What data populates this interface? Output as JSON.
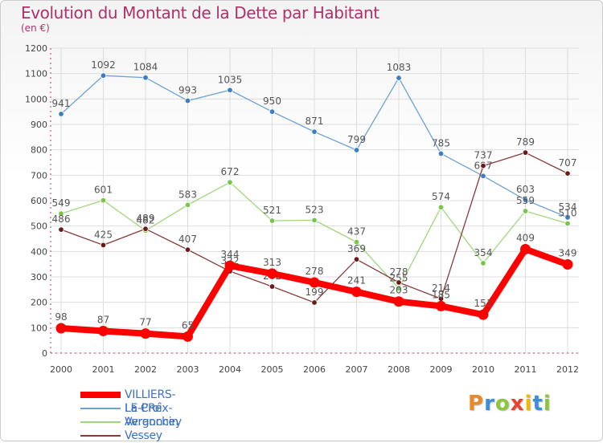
{
  "header": {
    "title": "Evolution du Montant de la Dette par Habitant",
    "subtitle": "(en €)"
  },
  "logo": {
    "text": "Proxiti",
    "letter_colors": [
      "#e8892b",
      "#3a8fd8",
      "#8cc63f",
      "#e8432e",
      "#f2b705",
      "#3a8fd8",
      "#8cc63f"
    ]
  },
  "chart_data": {
    "type": "line",
    "title": "Evolution du Montant de la Dette par Habitant",
    "subtitle": "(en €)",
    "xlabel": "",
    "ylabel": "",
    "ylim": [
      0,
      1200
    ],
    "yticks": [
      0,
      100,
      200,
      300,
      400,
      500,
      600,
      700,
      800,
      900,
      1000,
      1100,
      1200
    ],
    "grid": true,
    "legend_position": "bottom-left",
    "x": [
      "2000",
      "2001",
      "2002",
      "2003",
      "2004",
      "2005",
      "2006",
      "2007",
      "2008",
      "2009",
      "2010",
      "2011",
      "2012"
    ],
    "series": [
      {
        "name": "VILLIERS-LE-PRé",
        "color": "#ff0000",
        "emphasis": true,
        "values": [
          98,
          87,
          77,
          65,
          344,
          313,
          278,
          241,
          203,
          185,
          151,
          409,
          349
        ]
      },
      {
        "name": "La Croix-Avranchin",
        "color": "#6aa2d6",
        "marker_color": "#3a7fc4",
        "emphasis": false,
        "values": [
          941,
          1092,
          1084,
          993,
          1035,
          950,
          871,
          799,
          1083,
          785,
          697,
          603,
          534
        ]
      },
      {
        "name": "Vergoncey",
        "color": "#9fd87a",
        "marker_color": "#79c44c",
        "emphasis": false,
        "values": [
          549,
          601,
          482,
          583,
          672,
          521,
          523,
          437,
          255,
          574,
          354,
          559,
          510
        ]
      },
      {
        "name": "Vessey",
        "color": "#8b3a3a",
        "marker_color": "#6a1a1a",
        "emphasis": false,
        "values": [
          486,
          425,
          489,
          407,
          322,
          262,
          199,
          369,
          278,
          214,
          737,
          789,
          707
        ]
      }
    ]
  }
}
